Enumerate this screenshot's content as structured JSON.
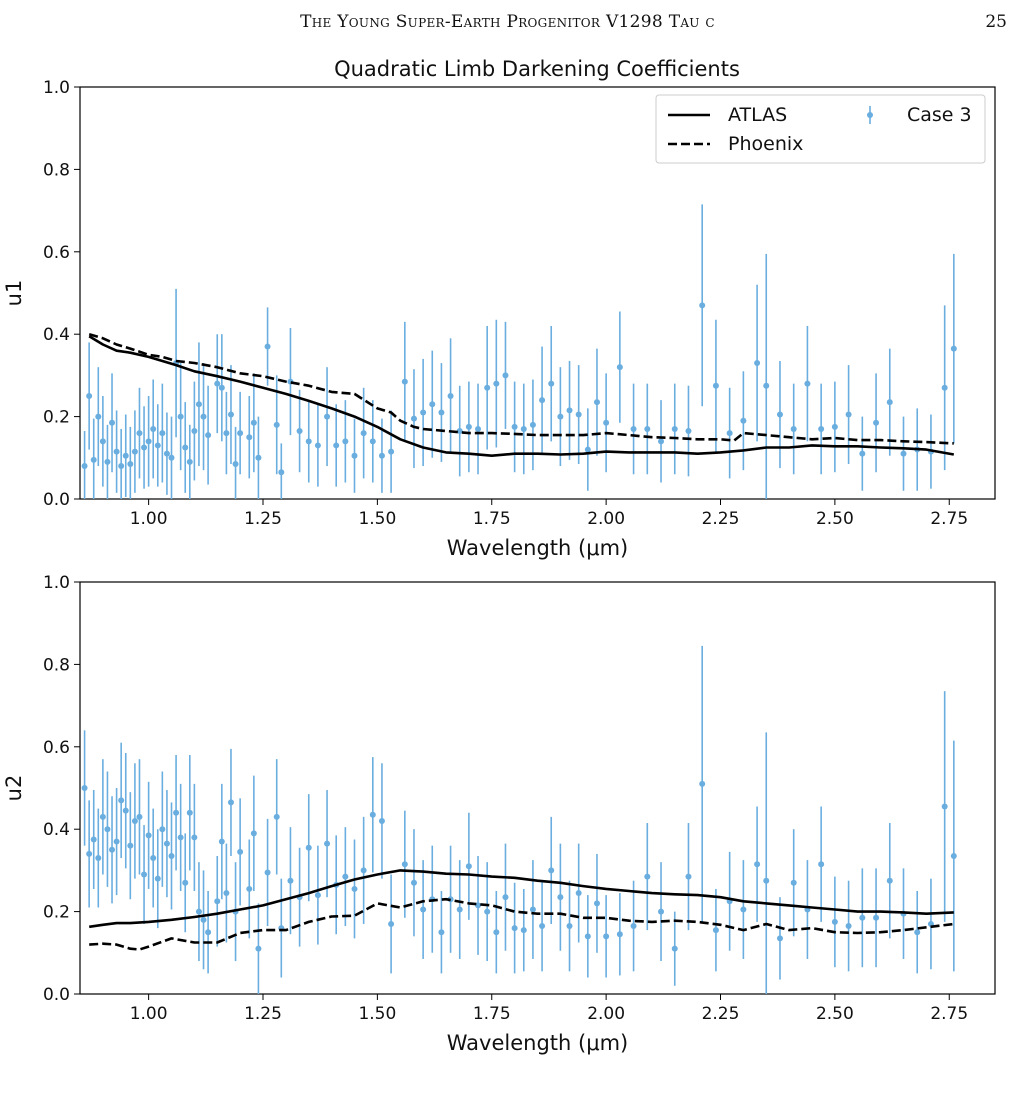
{
  "running_header": {
    "title": "The Young Super-Earth Progenitor V1298 Tau c",
    "page_number": "25"
  },
  "chart_data": [
    {
      "type": "line",
      "title": "Quadratic Limb Darkening Coefficients",
      "xlabel": "Wavelength (μm)",
      "ylabel": "u1",
      "xlim": [
        0.85,
        2.85
      ],
      "ylim": [
        0.0,
        1.0
      ],
      "xticks": [
        "1.00",
        "1.25",
        "1.50",
        "1.75",
        "2.00",
        "2.25",
        "2.50",
        "2.75"
      ],
      "yticks": [
        "0.0",
        "0.2",
        "0.4",
        "0.6",
        "0.8",
        "1.0"
      ],
      "grid": false,
      "legend": {
        "placement": "top-right",
        "entries": [
          "ATLAS",
          "Phoenix",
          "Case 3"
        ]
      },
      "series": [
        {
          "name": "ATLAS",
          "style": "solid",
          "color": "#000000",
          "x": [
            0.87,
            0.9,
            0.93,
            0.96,
            1.0,
            1.03,
            1.06,
            1.1,
            1.15,
            1.2,
            1.25,
            1.3,
            1.35,
            1.4,
            1.45,
            1.5,
            1.55,
            1.6,
            1.65,
            1.7,
            1.75,
            1.8,
            1.85,
            1.9,
            1.95,
            2.0,
            2.05,
            2.1,
            2.15,
            2.2,
            2.25,
            2.3,
            2.35,
            2.4,
            2.45,
            2.5,
            2.55,
            2.6,
            2.65,
            2.7,
            2.76
          ],
          "y": [
            0.395,
            0.375,
            0.36,
            0.355,
            0.345,
            0.335,
            0.325,
            0.31,
            0.298,
            0.285,
            0.27,
            0.255,
            0.238,
            0.22,
            0.2,
            0.175,
            0.145,
            0.125,
            0.113,
            0.11,
            0.105,
            0.11,
            0.11,
            0.108,
            0.11,
            0.115,
            0.113,
            0.113,
            0.113,
            0.11,
            0.113,
            0.118,
            0.125,
            0.125,
            0.13,
            0.128,
            0.128,
            0.125,
            0.123,
            0.12,
            0.108
          ]
        },
        {
          "name": "Phoenix",
          "style": "dashed",
          "color": "#000000",
          "x": [
            0.87,
            0.9,
            0.93,
            0.96,
            1.0,
            1.03,
            1.06,
            1.1,
            1.15,
            1.2,
            1.25,
            1.3,
            1.35,
            1.4,
            1.45,
            1.5,
            1.53,
            1.55,
            1.58,
            1.6,
            1.65,
            1.7,
            1.75,
            1.8,
            1.85,
            1.9,
            1.95,
            2.0,
            2.05,
            2.1,
            2.15,
            2.2,
            2.25,
            2.28,
            2.3,
            2.35,
            2.4,
            2.45,
            2.5,
            2.55,
            2.6,
            2.65,
            2.7,
            2.76
          ],
          "y": [
            0.4,
            0.39,
            0.375,
            0.365,
            0.35,
            0.345,
            0.335,
            0.33,
            0.32,
            0.305,
            0.298,
            0.285,
            0.275,
            0.26,
            0.255,
            0.22,
            0.21,
            0.19,
            0.175,
            0.17,
            0.165,
            0.16,
            0.16,
            0.158,
            0.155,
            0.155,
            0.155,
            0.16,
            0.155,
            0.15,
            0.148,
            0.145,
            0.145,
            0.142,
            0.16,
            0.155,
            0.15,
            0.145,
            0.148,
            0.143,
            0.143,
            0.14,
            0.138,
            0.135
          ]
        },
        {
          "name": "Case 3",
          "style": "errorbar",
          "color": "#6aaee0",
          "x": [
            0.86,
            0.87,
            0.88,
            0.89,
            0.9,
            0.91,
            0.92,
            0.93,
            0.94,
            0.95,
            0.96,
            0.97,
            0.98,
            0.99,
            1.0,
            1.01,
            1.02,
            1.03,
            1.04,
            1.05,
            1.06,
            1.07,
            1.08,
            1.09,
            1.1,
            1.11,
            1.12,
            1.13,
            1.15,
            1.16,
            1.17,
            1.18,
            1.19,
            1.2,
            1.22,
            1.23,
            1.24,
            1.26,
            1.28,
            1.29,
            1.31,
            1.33,
            1.35,
            1.37,
            1.39,
            1.41,
            1.43,
            1.45,
            1.47,
            1.49,
            1.51,
            1.53,
            1.56,
            1.58,
            1.6,
            1.62,
            1.64,
            1.66,
            1.68,
            1.7,
            1.72,
            1.74,
            1.76,
            1.78,
            1.8,
            1.82,
            1.84,
            1.86,
            1.88,
            1.9,
            1.92,
            1.94,
            1.96,
            1.98,
            2.0,
            2.03,
            2.06,
            2.09,
            2.12,
            2.15,
            2.18,
            2.21,
            2.24,
            2.27,
            2.3,
            2.33,
            2.35,
            2.38,
            2.41,
            2.44,
            2.47,
            2.5,
            2.53,
            2.56,
            2.59,
            2.62,
            2.65,
            2.68,
            2.71,
            2.74,
            2.76
          ],
          "y": [
            0.08,
            0.25,
            0.095,
            0.2,
            0.14,
            0.09,
            0.185,
            0.115,
            0.08,
            0.105,
            0.085,
            0.115,
            0.16,
            0.125,
            0.14,
            0.17,
            0.13,
            0.16,
            0.11,
            0.1,
            0.33,
            0.2,
            0.125,
            0.09,
            0.165,
            0.23,
            0.2,
            0.155,
            0.28,
            0.27,
            0.16,
            0.205,
            0.085,
            0.16,
            0.15,
            0.185,
            0.1,
            0.37,
            0.18,
            0.065,
            0.285,
            0.165,
            0.14,
            0.13,
            0.2,
            0.13,
            0.14,
            0.105,
            0.16,
            0.14,
            0.105,
            0.115,
            0.285,
            0.195,
            0.21,
            0.23,
            0.21,
            0.25,
            0.165,
            0.175,
            0.17,
            0.27,
            0.28,
            0.3,
            0.175,
            0.17,
            0.18,
            0.24,
            0.28,
            0.2,
            0.215,
            0.205,
            0.12,
            0.235,
            0.185,
            0.32,
            0.17,
            0.17,
            0.14,
            0.17,
            0.165,
            0.47,
            0.275,
            0.16,
            0.19,
            0.33,
            0.275,
            0.205,
            0.17,
            0.28,
            0.17,
            0.175,
            0.205,
            0.11,
            0.185,
            0.235,
            0.11,
            0.12,
            0.115,
            0.27,
            0.365
          ],
          "err": [
            0.085,
            0.13,
            0.1,
            0.12,
            0.11,
            0.09,
            0.12,
            0.1,
            0.09,
            0.1,
            0.09,
            0.1,
            0.11,
            0.1,
            0.11,
            0.12,
            0.1,
            0.12,
            0.1,
            0.1,
            0.18,
            0.13,
            0.11,
            0.09,
            0.12,
            0.15,
            0.13,
            0.12,
            0.12,
            0.13,
            0.1,
            0.12,
            0.09,
            0.1,
            0.1,
            0.12,
            0.1,
            0.095,
            0.12,
            0.07,
            0.13,
            0.1,
            0.1,
            0.1,
            0.12,
            0.1,
            0.1,
            0.09,
            0.11,
            0.1,
            0.09,
            0.1,
            0.145,
            0.12,
            0.13,
            0.13,
            0.12,
            0.14,
            0.11,
            0.11,
            0.11,
            0.15,
            0.155,
            0.13,
            0.11,
            0.11,
            0.11,
            0.13,
            0.14,
            0.12,
            0.12,
            0.12,
            0.1,
            0.13,
            0.12,
            0.135,
            0.11,
            0.11,
            0.1,
            0.11,
            0.11,
            0.245,
            0.16,
            0.11,
            0.12,
            0.19,
            0.32,
            0.13,
            0.11,
            0.14,
            0.11,
            0.11,
            0.12,
            0.09,
            0.12,
            0.13,
            0.09,
            0.1,
            0.09,
            0.2,
            0.23
          ]
        }
      ]
    },
    {
      "type": "line",
      "title": "",
      "xlabel": "Wavelength (μm)",
      "ylabel": "u2",
      "xlim": [
        0.85,
        2.85
      ],
      "ylim": [
        0.0,
        1.0
      ],
      "xticks": [
        "1.00",
        "1.25",
        "1.50",
        "1.75",
        "2.00",
        "2.25",
        "2.50",
        "2.75"
      ],
      "yticks": [
        "0.0",
        "0.2",
        "0.4",
        "0.6",
        "0.8",
        "1.0"
      ],
      "grid": false,
      "series": [
        {
          "name": "ATLAS",
          "style": "solid",
          "color": "#000000",
          "x": [
            0.87,
            0.9,
            0.93,
            0.96,
            1.0,
            1.05,
            1.1,
            1.15,
            1.2,
            1.25,
            1.3,
            1.35,
            1.4,
            1.45,
            1.5,
            1.55,
            1.6,
            1.65,
            1.7,
            1.75,
            1.8,
            1.85,
            1.9,
            1.95,
            2.0,
            2.05,
            2.1,
            2.15,
            2.2,
            2.25,
            2.3,
            2.35,
            2.4,
            2.45,
            2.5,
            2.55,
            2.6,
            2.65,
            2.7,
            2.76
          ],
          "y": [
            0.163,
            0.168,
            0.172,
            0.172,
            0.175,
            0.18,
            0.187,
            0.195,
            0.205,
            0.215,
            0.23,
            0.245,
            0.262,
            0.278,
            0.29,
            0.3,
            0.297,
            0.292,
            0.29,
            0.285,
            0.282,
            0.275,
            0.27,
            0.262,
            0.255,
            0.25,
            0.245,
            0.242,
            0.24,
            0.235,
            0.225,
            0.22,
            0.215,
            0.21,
            0.205,
            0.2,
            0.2,
            0.198,
            0.195,
            0.198
          ]
        },
        {
          "name": "Phoenix",
          "style": "dashed",
          "color": "#000000",
          "x": [
            0.87,
            0.9,
            0.93,
            0.96,
            0.98,
            1.0,
            1.05,
            1.1,
            1.15,
            1.2,
            1.25,
            1.3,
            1.35,
            1.4,
            1.45,
            1.5,
            1.55,
            1.6,
            1.65,
            1.7,
            1.75,
            1.8,
            1.85,
            1.9,
            1.95,
            2.0,
            2.05,
            2.1,
            2.15,
            2.2,
            2.25,
            2.3,
            2.35,
            2.4,
            2.45,
            2.5,
            2.55,
            2.6,
            2.65,
            2.7,
            2.76
          ],
          "y": [
            0.12,
            0.122,
            0.12,
            0.11,
            0.108,
            0.115,
            0.135,
            0.125,
            0.125,
            0.148,
            0.155,
            0.155,
            0.175,
            0.188,
            0.19,
            0.22,
            0.21,
            0.225,
            0.23,
            0.22,
            0.215,
            0.2,
            0.195,
            0.195,
            0.185,
            0.185,
            0.178,
            0.175,
            0.178,
            0.175,
            0.168,
            0.155,
            0.17,
            0.155,
            0.16,
            0.15,
            0.148,
            0.15,
            0.155,
            0.162,
            0.17
          ]
        },
        {
          "name": "Case 3",
          "style": "errorbar",
          "color": "#6aaee0",
          "x": [
            0.86,
            0.87,
            0.88,
            0.89,
            0.9,
            0.91,
            0.92,
            0.93,
            0.94,
            0.95,
            0.96,
            0.97,
            0.98,
            0.99,
            1.0,
            1.01,
            1.02,
            1.03,
            1.04,
            1.05,
            1.06,
            1.07,
            1.08,
            1.09,
            1.1,
            1.11,
            1.12,
            1.13,
            1.15,
            1.16,
            1.17,
            1.18,
            1.19,
            1.2,
            1.22,
            1.23,
            1.24,
            1.26,
            1.28,
            1.29,
            1.31,
            1.33,
            1.35,
            1.37,
            1.39,
            1.41,
            1.43,
            1.45,
            1.47,
            1.49,
            1.51,
            1.53,
            1.56,
            1.58,
            1.6,
            1.62,
            1.64,
            1.66,
            1.68,
            1.7,
            1.72,
            1.74,
            1.76,
            1.78,
            1.8,
            1.82,
            1.84,
            1.86,
            1.88,
            1.9,
            1.92,
            1.94,
            1.96,
            1.98,
            2.0,
            2.03,
            2.06,
            2.09,
            2.12,
            2.15,
            2.18,
            2.21,
            2.24,
            2.27,
            2.3,
            2.33,
            2.35,
            2.38,
            2.41,
            2.44,
            2.47,
            2.5,
            2.53,
            2.56,
            2.59,
            2.62,
            2.65,
            2.68,
            2.71,
            2.74,
            2.76
          ],
          "y": [
            0.5,
            0.34,
            0.375,
            0.33,
            0.43,
            0.4,
            0.35,
            0.37,
            0.47,
            0.445,
            0.36,
            0.42,
            0.43,
            0.29,
            0.385,
            0.33,
            0.28,
            0.4,
            0.365,
            0.335,
            0.44,
            0.38,
            0.27,
            0.44,
            0.38,
            0.2,
            0.18,
            0.15,
            0.225,
            0.37,
            0.245,
            0.465,
            0.2,
            0.345,
            0.255,
            0.39,
            0.11,
            0.295,
            0.43,
            0.16,
            0.275,
            0.235,
            0.355,
            0.24,
            0.365,
            0.265,
            0.285,
            0.255,
            0.3,
            0.435,
            0.42,
            0.17,
            0.315,
            0.27,
            0.205,
            0.23,
            0.15,
            0.23,
            0.205,
            0.31,
            0.215,
            0.2,
            0.15,
            0.235,
            0.16,
            0.155,
            0.205,
            0.165,
            0.3,
            0.235,
            0.165,
            0.245,
            0.14,
            0.22,
            0.14,
            0.145,
            0.165,
            0.285,
            0.2,
            0.11,
            0.285,
            0.51,
            0.155,
            0.225,
            0.205,
            0.315,
            0.275,
            0.135,
            0.27,
            0.205,
            0.315,
            0.175,
            0.165,
            0.185,
            0.185,
            0.275,
            0.195,
            0.15,
            0.17,
            0.455,
            0.335
          ],
          "err": [
            0.14,
            0.13,
            0.12,
            0.12,
            0.14,
            0.14,
            0.13,
            0.13,
            0.14,
            0.14,
            0.13,
            0.14,
            0.14,
            0.12,
            0.13,
            0.12,
            0.12,
            0.14,
            0.13,
            0.13,
            0.14,
            0.13,
            0.12,
            0.14,
            0.13,
            0.12,
            0.12,
            0.1,
            0.11,
            0.14,
            0.12,
            0.13,
            0.12,
            0.13,
            0.12,
            0.14,
            0.11,
            0.13,
            0.14,
            0.12,
            0.13,
            0.12,
            0.13,
            0.12,
            0.13,
            0.12,
            0.12,
            0.12,
            0.13,
            0.14,
            0.14,
            0.12,
            0.13,
            0.13,
            0.12,
            0.13,
            0.1,
            0.13,
            0.12,
            0.13,
            0.12,
            0.12,
            0.1,
            0.13,
            0.11,
            0.1,
            0.12,
            0.11,
            0.13,
            0.13,
            0.11,
            0.12,
            0.1,
            0.12,
            0.1,
            0.1,
            0.11,
            0.13,
            0.12,
            0.09,
            0.13,
            0.335,
            0.1,
            0.12,
            0.12,
            0.14,
            0.36,
            0.1,
            0.13,
            0.12,
            0.14,
            0.11,
            0.11,
            0.12,
            0.12,
            0.14,
            0.11,
            0.1,
            0.11,
            0.28,
            0.28
          ]
        }
      ]
    }
  ]
}
